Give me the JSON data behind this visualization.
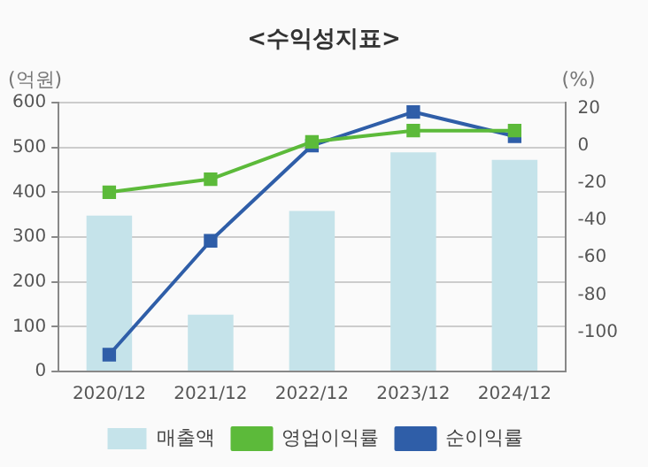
{
  "chart_data": {
    "type": "bar",
    "title": "<수익성지표>",
    "ylabel": "(억원)",
    "y2label": "(%)",
    "categories": [
      "2020/12",
      "2021/12",
      "2022/12",
      "2023/12",
      "2024/12"
    ],
    "series": [
      {
        "name": "매출액",
        "color": "#c5e3ea",
        "values": [
          348,
          127,
          358,
          489,
          472
        ]
      },
      {
        "name": "영업이익률",
        "type": "line",
        "axis": "y2",
        "color": "#5cba3a",
        "values": [
          -25,
          -18,
          2,
          8,
          8
        ]
      },
      {
        "name": "순이익률",
        "type": "line",
        "axis": "y2",
        "color": "#2f5ea8",
        "values": [
          -112,
          -51,
          0,
          18,
          5
        ]
      }
    ],
    "ylim": [
      0,
      600
    ],
    "yticks": [
      0,
      100,
      200,
      300,
      400,
      500,
      600
    ],
    "y2lim": [
      -121,
      23
    ],
    "y2ticks": [
      20,
      0,
      -20,
      -40,
      -60,
      -80,
      -100
    ],
    "grid": "y",
    "legend": "bottom",
    "marker": "square",
    "line_style": "solid"
  }
}
